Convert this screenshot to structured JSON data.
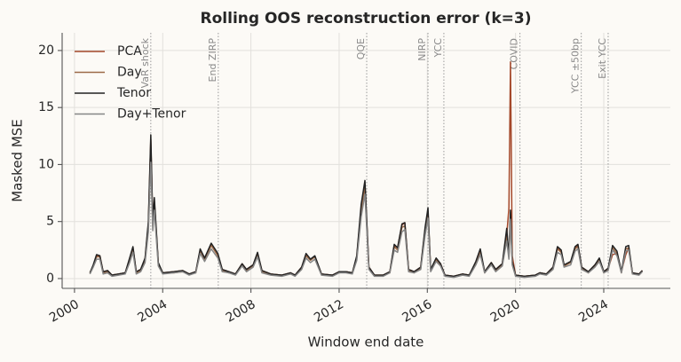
{
  "chart_data": {
    "type": "line",
    "title": "Rolling OOS reconstruction error (k=3)",
    "xlabel": "Window end date",
    "ylabel": "Masked MSE",
    "x": [
      2000.7,
      2000.85,
      2001.0,
      2001.15,
      2001.3,
      2001.5,
      2001.7,
      2002.0,
      2002.3,
      2002.5,
      2002.65,
      2002.8,
      2003.0,
      2003.2,
      2003.35,
      2003.46,
      2003.55,
      2003.62,
      2003.8,
      2004.0,
      2004.5,
      2004.9,
      2005.2,
      2005.5,
      2005.7,
      2005.9,
      2006.2,
      2006.5,
      2006.7,
      2007.0,
      2007.3,
      2007.6,
      2007.8,
      2008.1,
      2008.3,
      2008.5,
      2008.9,
      2009.4,
      2009.8,
      2010.0,
      2010.3,
      2010.5,
      2010.7,
      2010.9,
      2011.2,
      2011.7,
      2012.0,
      2012.3,
      2012.6,
      2012.8,
      2013.0,
      2013.17,
      2013.35,
      2013.6,
      2014.0,
      2014.3,
      2014.5,
      2014.65,
      2014.85,
      2014.98,
      2015.15,
      2015.4,
      2015.7,
      2015.9,
      2016.03,
      2016.15,
      2016.4,
      2016.6,
      2016.8,
      2017.2,
      2017.6,
      2017.9,
      2018.2,
      2018.4,
      2018.6,
      2018.9,
      2019.1,
      2019.4,
      2019.6,
      2019.7,
      2019.77,
      2019.85,
      2020.0,
      2020.4,
      2020.9,
      2021.1,
      2021.4,
      2021.7,
      2021.9,
      2022.07,
      2022.2,
      2022.5,
      2022.7,
      2022.83,
      2023.0,
      2023.3,
      2023.6,
      2023.8,
      2024.0,
      2024.2,
      2024.4,
      2024.6,
      2024.8,
      2025.0,
      2025.13,
      2025.3,
      2025.6,
      2025.75
    ],
    "series": [
      {
        "name": "PCA",
        "color": "#a4482a",
        "values": [
          0.5,
          1.1,
          2.0,
          2.0,
          0.6,
          0.7,
          0.3,
          0.4,
          0.5,
          1.7,
          2.7,
          0.6,
          0.8,
          1.7,
          4.8,
          12.2,
          4.9,
          6.8,
          1.3,
          0.5,
          0.6,
          0.7,
          0.4,
          0.6,
          2.5,
          1.8,
          3.0,
          2.1,
          0.8,
          0.6,
          0.4,
          1.3,
          0.8,
          1.2,
          2.2,
          0.7,
          0.4,
          0.3,
          0.5,
          0.3,
          1.0,
          2.1,
          1.7,
          1.9,
          0.4,
          0.3,
          0.6,
          0.6,
          0.5,
          1.9,
          6.2,
          8.3,
          1.0,
          0.3,
          0.3,
          0.6,
          2.9,
          2.7,
          4.7,
          4.9,
          0.8,
          0.6,
          1.0,
          4.3,
          5.9,
          0.8,
          1.7,
          1.3,
          0.3,
          0.2,
          0.4,
          0.3,
          1.4,
          2.4,
          0.6,
          1.4,
          0.8,
          1.3,
          3.8,
          6.2,
          19.0,
          2.0,
          0.3,
          0.2,
          0.3,
          0.5,
          0.4,
          1.0,
          2.7,
          2.4,
          1.2,
          1.4,
          2.7,
          2.9,
          1.0,
          0.6,
          1.2,
          1.7,
          0.6,
          0.9,
          2.1,
          2.2,
          0.6,
          2.1,
          2.7,
          0.5,
          0.4,
          0.7
        ]
      },
      {
        "name": "Day",
        "color": "#9c6a48",
        "values": [
          0.5,
          1.1,
          1.9,
          1.9,
          0.5,
          0.6,
          0.3,
          0.4,
          0.5,
          1.6,
          2.6,
          0.5,
          0.7,
          1.6,
          4.6,
          11.0,
          4.6,
          6.5,
          1.3,
          0.5,
          0.5,
          0.6,
          0.4,
          0.5,
          2.4,
          1.7,
          2.9,
          2.0,
          0.7,
          0.5,
          0.4,
          1.2,
          0.7,
          1.1,
          2.1,
          0.6,
          0.4,
          0.3,
          0.4,
          0.3,
          0.9,
          2.0,
          1.6,
          1.9,
          0.4,
          0.3,
          0.5,
          0.6,
          0.5,
          1.8,
          6.0,
          8.0,
          0.9,
          0.3,
          0.3,
          0.5,
          2.8,
          2.5,
          4.5,
          4.6,
          0.7,
          0.5,
          0.9,
          4.2,
          5.8,
          0.7,
          1.6,
          1.2,
          0.3,
          0.2,
          0.4,
          0.3,
          1.4,
          2.4,
          0.5,
          1.3,
          0.7,
          1.2,
          3.6,
          2.0,
          5.8,
          1.4,
          0.3,
          0.2,
          0.3,
          0.5,
          0.4,
          0.9,
          2.6,
          2.3,
          1.1,
          1.4,
          2.6,
          2.8,
          0.9,
          0.5,
          1.1,
          1.7,
          0.5,
          0.8,
          2.7,
          2.2,
          0.5,
          2.6,
          2.7,
          0.4,
          0.4,
          0.6
        ]
      },
      {
        "name": "Tenor",
        "color": "#222222",
        "values": [
          0.5,
          1.2,
          2.1,
          2.0,
          0.6,
          0.7,
          0.3,
          0.4,
          0.5,
          1.8,
          2.8,
          0.6,
          0.8,
          1.8,
          5.0,
          12.6,
          5.0,
          7.1,
          1.4,
          0.5,
          0.6,
          0.7,
          0.4,
          0.6,
          2.6,
          1.8,
          3.1,
          2.2,
          0.8,
          0.6,
          0.4,
          1.3,
          0.8,
          1.2,
          2.3,
          0.7,
          0.4,
          0.3,
          0.5,
          0.3,
          1.0,
          2.2,
          1.7,
          2.0,
          0.4,
          0.3,
          0.6,
          0.6,
          0.5,
          2.0,
          6.5,
          8.6,
          1.0,
          0.3,
          0.3,
          0.6,
          3.0,
          2.7,
          4.8,
          4.9,
          0.8,
          0.6,
          1.0,
          4.5,
          6.2,
          0.8,
          1.8,
          1.3,
          0.3,
          0.2,
          0.4,
          0.3,
          1.5,
          2.6,
          0.6,
          1.4,
          0.8,
          1.3,
          4.4,
          2.0,
          6.0,
          1.5,
          0.3,
          0.2,
          0.3,
          0.5,
          0.4,
          1.0,
          2.8,
          2.5,
          1.2,
          1.5,
          2.8,
          3.0,
          1.0,
          0.6,
          1.2,
          1.8,
          0.6,
          0.9,
          2.9,
          2.4,
          0.6,
          2.8,
          2.9,
          0.5,
          0.4,
          0.7
        ]
      },
      {
        "name": "Day+Tenor",
        "color": "#858585",
        "values": [
          0.4,
          1.0,
          1.7,
          1.7,
          0.4,
          0.5,
          0.2,
          0.3,
          0.4,
          1.4,
          2.3,
          0.4,
          0.6,
          1.4,
          4.1,
          10.2,
          4.2,
          6.0,
          1.1,
          0.4,
          0.5,
          0.6,
          0.3,
          0.5,
          2.2,
          1.5,
          2.6,
          1.8,
          0.6,
          0.5,
          0.3,
          1.1,
          0.6,
          1.0,
          1.9,
          0.5,
          0.3,
          0.2,
          0.4,
          0.2,
          0.8,
          1.8,
          1.4,
          1.7,
          0.3,
          0.2,
          0.5,
          0.5,
          0.4,
          1.6,
          5.4,
          7.4,
          0.8,
          0.2,
          0.2,
          0.5,
          2.5,
          2.3,
          4.1,
          4.3,
          0.6,
          0.5,
          0.8,
          3.8,
          5.3,
          0.6,
          1.5,
          1.1,
          0.2,
          0.1,
          0.3,
          0.2,
          1.2,
          2.1,
          0.5,
          1.2,
          0.6,
          1.1,
          3.3,
          1.7,
          5.2,
          1.2,
          0.2,
          0.1,
          0.2,
          0.4,
          0.3,
          0.8,
          2.3,
          2.1,
          1.0,
          1.2,
          2.4,
          2.6,
          0.8,
          0.5,
          1.0,
          1.5,
          0.5,
          0.7,
          2.5,
          2.0,
          0.5,
          2.4,
          2.5,
          0.4,
          0.3,
          0.6
        ]
      }
    ],
    "annotations": [
      {
        "x": 2003.46,
        "label": "VaR shock"
      },
      {
        "x": 2006.52,
        "label": "End ZIRP"
      },
      {
        "x": 2013.25,
        "label": "QQE"
      },
      {
        "x": 2016.03,
        "label": "NIRP"
      },
      {
        "x": 2016.75,
        "label": "YCC"
      },
      {
        "x": 2020.2,
        "label": "COVID"
      },
      {
        "x": 2022.98,
        "label": "YCC ±50bp"
      },
      {
        "x": 2024.2,
        "label": "Exit YCC"
      }
    ],
    "xlim": [
      1999.44,
      2027.02
    ],
    "xticks": [
      2000,
      2004,
      2008,
      2012,
      2016,
      2020,
      2024
    ],
    "ylim": [
      -0.86,
      21.55
    ],
    "yticks": [
      0,
      5,
      10,
      15,
      20
    ],
    "grid": true,
    "legend": "upper left"
  }
}
